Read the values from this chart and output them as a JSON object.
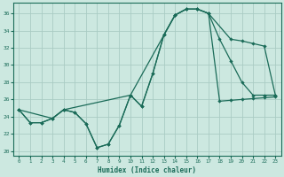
{
  "xlabel": "Humidex (Indice chaleur)",
  "bg_color": "#cce8e0",
  "grid_color": "#aaccc4",
  "line_color": "#1a6b58",
  "xlim": [
    -0.5,
    23.5
  ],
  "ylim": [
    19.5,
    37.2
  ],
  "xticks": [
    0,
    1,
    2,
    3,
    4,
    5,
    6,
    7,
    8,
    9,
    10,
    11,
    12,
    13,
    14,
    15,
    16,
    17,
    18,
    19,
    20,
    21,
    22,
    23
  ],
  "yticks": [
    20,
    22,
    24,
    26,
    28,
    30,
    32,
    34,
    36
  ],
  "line1_x": [
    0,
    1,
    2,
    3,
    4,
    5,
    6,
    7,
    8,
    9,
    10,
    11,
    12,
    13,
    14,
    15,
    16,
    17,
    18,
    19,
    20,
    21,
    22,
    23
  ],
  "line1_y": [
    24.8,
    23.3,
    23.3,
    23.8,
    24.8,
    24.5,
    23.2,
    20.4,
    20.8,
    23.0,
    26.5,
    25.2,
    29.0,
    33.5,
    35.8,
    36.5,
    36.5,
    36.0,
    25.8,
    25.9,
    26.0,
    26.1,
    26.2,
    26.3
  ],
  "line2_x": [
    0,
    3,
    4,
    10,
    14,
    15,
    16,
    17,
    19,
    20,
    21,
    22,
    23
  ],
  "line2_y": [
    24.8,
    23.8,
    24.8,
    26.5,
    35.8,
    36.5,
    36.5,
    36.0,
    33.0,
    32.8,
    32.5,
    32.2,
    26.5
  ],
  "line3_x": [
    0,
    1,
    2,
    3,
    4,
    5,
    6,
    7,
    8,
    9,
    10,
    11,
    12,
    13,
    14,
    15,
    16,
    17,
    18,
    19,
    20,
    21,
    22,
    23
  ],
  "line3_y": [
    24.8,
    23.3,
    23.3,
    23.8,
    24.8,
    24.5,
    23.2,
    20.4,
    20.8,
    23.0,
    26.5,
    25.2,
    29.0,
    33.5,
    35.8,
    36.5,
    36.5,
    36.0,
    33.0,
    30.5,
    28.0,
    26.5,
    26.5,
    26.5
  ]
}
